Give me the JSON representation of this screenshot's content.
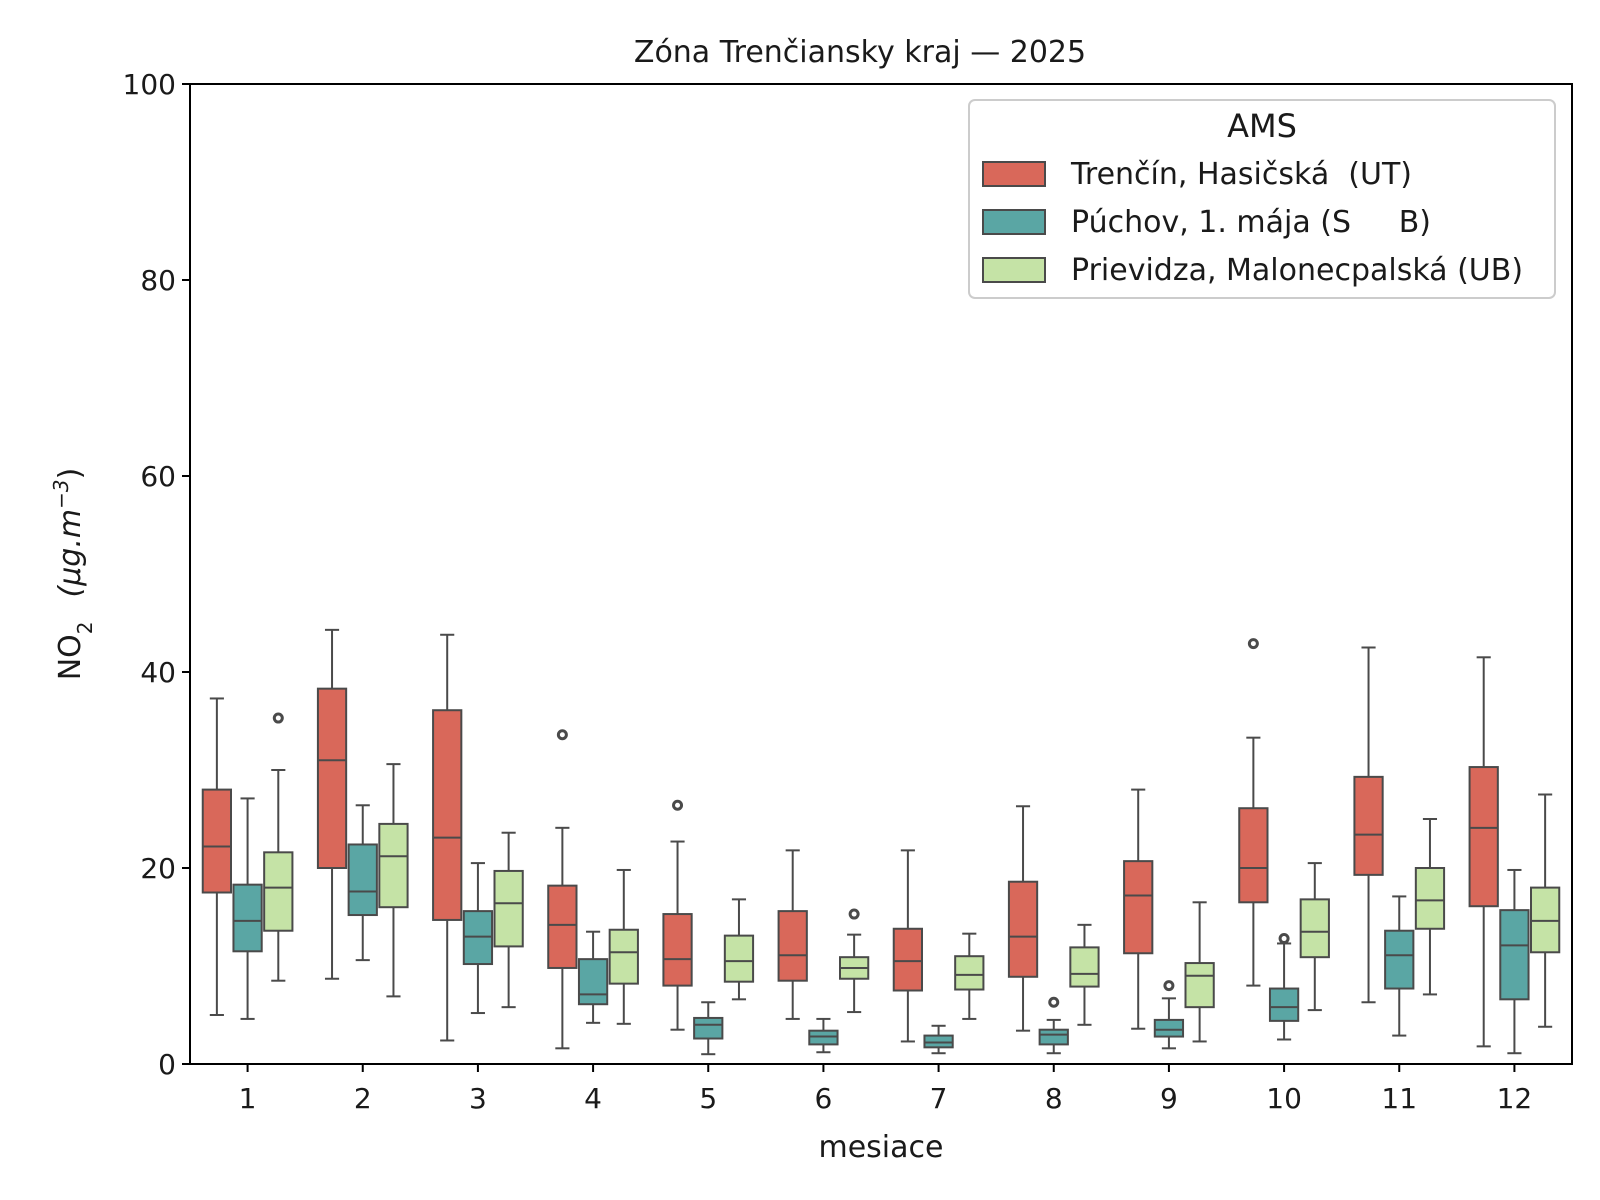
{
  "chart_data": {
    "type": "box",
    "title": "Zóna Trenčiansky kraj —  2025",
    "xlabel": "mesiace",
    "ylabel": "NO",
    "ylabel_sub": "2",
    "ylabel_units": "(μg.m",
    "ylabel_sup": "−3",
    "ylabel_close": ")",
    "ylim": [
      0,
      100
    ],
    "yticks": [
      0,
      20,
      40,
      60,
      80,
      100
    ],
    "categories": [
      "1",
      "2",
      "3",
      "4",
      "5",
      "6",
      "7",
      "8",
      "9",
      "10",
      "11",
      "12"
    ],
    "legend": {
      "title": "AMS",
      "position": "upper right"
    },
    "series": [
      {
        "name": "Trenčín, Hasičská  (UT)",
        "color": "#d9685a",
        "boxes": [
          {
            "whislo": 5.0,
            "q1": 17.5,
            "med": 22.2,
            "q3": 28.0,
            "whishi": 37.3,
            "fliers": []
          },
          {
            "whislo": 8.7,
            "q1": 20.0,
            "med": 31.0,
            "q3": 38.3,
            "whishi": 44.3,
            "fliers": []
          },
          {
            "whislo": 2.4,
            "q1": 14.7,
            "med": 23.1,
            "q3": 36.1,
            "whishi": 43.8,
            "fliers": []
          },
          {
            "whislo": 1.6,
            "q1": 9.8,
            "med": 14.2,
            "q3": 18.2,
            "whishi": 24.1,
            "fliers": [
              33.6
            ]
          },
          {
            "whislo": 3.5,
            "q1": 8.0,
            "med": 10.7,
            "q3": 15.3,
            "whishi": 22.7,
            "fliers": [
              26.4
            ]
          },
          {
            "whislo": 4.6,
            "q1": 8.5,
            "med": 11.1,
            "q3": 15.6,
            "whishi": 21.8,
            "fliers": []
          },
          {
            "whislo": 2.3,
            "q1": 7.5,
            "med": 10.5,
            "q3": 13.8,
            "whishi": 21.8,
            "fliers": []
          },
          {
            "whislo": 3.4,
            "q1": 8.9,
            "med": 13.0,
            "q3": 18.6,
            "whishi": 26.3,
            "fliers": []
          },
          {
            "whislo": 3.6,
            "q1": 11.3,
            "med": 17.2,
            "q3": 20.7,
            "whishi": 28.0,
            "fliers": []
          },
          {
            "whislo": 8.0,
            "q1": 16.5,
            "med": 20.0,
            "q3": 26.1,
            "whishi": 33.3,
            "fliers": [
              42.9
            ]
          },
          {
            "whislo": 6.3,
            "q1": 19.3,
            "med": 23.4,
            "q3": 29.3,
            "whishi": 42.5,
            "fliers": []
          },
          {
            "whislo": 1.8,
            "q1": 16.1,
            "med": 24.1,
            "q3": 30.3,
            "whishi": 41.5,
            "fliers": []
          }
        ]
      },
      {
        "name": "Púchov, 1. mája (S     B)",
        "color": "#5aa6a4",
        "boxes": [
          {
            "whislo": 4.6,
            "q1": 11.5,
            "med": 14.6,
            "q3": 18.3,
            "whishi": 27.1,
            "fliers": []
          },
          {
            "whislo": 10.6,
            "q1": 15.2,
            "med": 17.6,
            "q3": 22.4,
            "whishi": 26.4,
            "fliers": []
          },
          {
            "whislo": 5.2,
            "q1": 10.2,
            "med": 13.0,
            "q3": 15.6,
            "whishi": 20.5,
            "fliers": []
          },
          {
            "whislo": 4.2,
            "q1": 6.1,
            "med": 7.1,
            "q3": 10.7,
            "whishi": 13.5,
            "fliers": []
          },
          {
            "whislo": 1.0,
            "q1": 2.6,
            "med": 4.0,
            "q3": 4.7,
            "whishi": 6.3,
            "fliers": []
          },
          {
            "whislo": 1.2,
            "q1": 2.0,
            "med": 2.8,
            "q3": 3.4,
            "whishi": 4.6,
            "fliers": []
          },
          {
            "whislo": 1.1,
            "q1": 1.7,
            "med": 2.2,
            "q3": 2.9,
            "whishi": 3.9,
            "fliers": []
          },
          {
            "whislo": 1.1,
            "q1": 2.0,
            "med": 3.0,
            "q3": 3.5,
            "whishi": 4.5,
            "fliers": [
              6.3
            ]
          },
          {
            "whislo": 1.6,
            "q1": 2.8,
            "med": 3.5,
            "q3": 4.5,
            "whishi": 6.7,
            "fliers": [
              8.0
            ]
          },
          {
            "whislo": 2.5,
            "q1": 4.4,
            "med": 5.8,
            "q3": 7.7,
            "whishi": 12.3,
            "fliers": [
              12.8
            ]
          },
          {
            "whislo": 2.9,
            "q1": 7.7,
            "med": 11.1,
            "q3": 13.6,
            "whishi": 17.1,
            "fliers": []
          },
          {
            "whislo": 1.1,
            "q1": 6.6,
            "med": 12.1,
            "q3": 15.7,
            "whishi": 19.8,
            "fliers": []
          }
        ]
      },
      {
        "name": "Prievidza, Malonecpalská (UB)",
        "color": "#c5e3a6",
        "boxes": [
          {
            "whislo": 8.5,
            "q1": 13.6,
            "med": 18.0,
            "q3": 21.6,
            "whishi": 30.0,
            "fliers": [
              35.3
            ]
          },
          {
            "whislo": 6.9,
            "q1": 16.0,
            "med": 21.2,
            "q3": 24.5,
            "whishi": 30.6,
            "fliers": []
          },
          {
            "whislo": 5.8,
            "q1": 12.0,
            "med": 16.4,
            "q3": 19.7,
            "whishi": 23.6,
            "fliers": []
          },
          {
            "whislo": 4.1,
            "q1": 8.2,
            "med": 11.4,
            "q3": 13.7,
            "whishi": 19.8,
            "fliers": []
          },
          {
            "whislo": 6.6,
            "q1": 8.4,
            "med": 10.5,
            "q3": 13.1,
            "whishi": 16.8,
            "fliers": []
          },
          {
            "whislo": 5.3,
            "q1": 8.7,
            "med": 9.8,
            "q3": 10.9,
            "whishi": 13.2,
            "fliers": [
              15.3
            ]
          },
          {
            "whislo": 4.6,
            "q1": 7.6,
            "med": 9.1,
            "q3": 11.0,
            "whishi": 13.3,
            "fliers": []
          },
          {
            "whislo": 4.0,
            "q1": 7.9,
            "med": 9.2,
            "q3": 11.9,
            "whishi": 14.2,
            "fliers": []
          },
          {
            "whislo": 2.3,
            "q1": 5.8,
            "med": 9.0,
            "q3": 10.3,
            "whishi": 16.5,
            "fliers": []
          },
          {
            "whislo": 5.5,
            "q1": 10.9,
            "med": 13.5,
            "q3": 16.8,
            "whishi": 20.5,
            "fliers": []
          },
          {
            "whislo": 7.1,
            "q1": 13.8,
            "med": 16.7,
            "q3": 20.0,
            "whishi": 25.0,
            "fliers": []
          },
          {
            "whislo": 3.8,
            "q1": 11.4,
            "med": 14.6,
            "q3": 18.0,
            "whishi": 27.5,
            "fliers": []
          }
        ]
      }
    ]
  }
}
